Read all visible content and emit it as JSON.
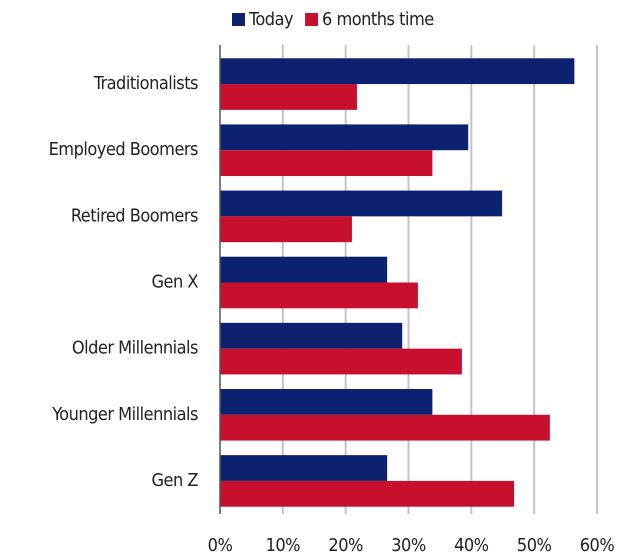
{
  "chart_data": {
    "type": "bar",
    "orientation": "horizontal",
    "categories": [
      "Traditionalists",
      "Employed Boomers",
      "Retired Boomers",
      "Gen X",
      "Older Millennials",
      "Younger Millennials",
      "Gen Z"
    ],
    "series": [
      {
        "name": "Today",
        "color": "#0c2270",
        "values": [
          56.4,
          39.5,
          44.9,
          26.6,
          29,
          33.8,
          26.6
        ]
      },
      {
        "name": "6 months time",
        "color": "#c8102e",
        "values": [
          21.8,
          33.8,
          21,
          31.5,
          38.5,
          52.5,
          46.8
        ]
      }
    ],
    "xlim": [
      0,
      60
    ],
    "xticks": [
      {
        "value": 0,
        "label": "0%"
      },
      {
        "value": 10,
        "label": "10%"
      },
      {
        "value": 20,
        "label": "20%"
      },
      {
        "value": 30,
        "label": "30%"
      },
      {
        "value": 40,
        "label": "40%"
      },
      {
        "value": 50,
        "label": "50%"
      },
      {
        "value": 60,
        "label": "60%"
      }
    ],
    "grid": true,
    "legend": "top"
  }
}
